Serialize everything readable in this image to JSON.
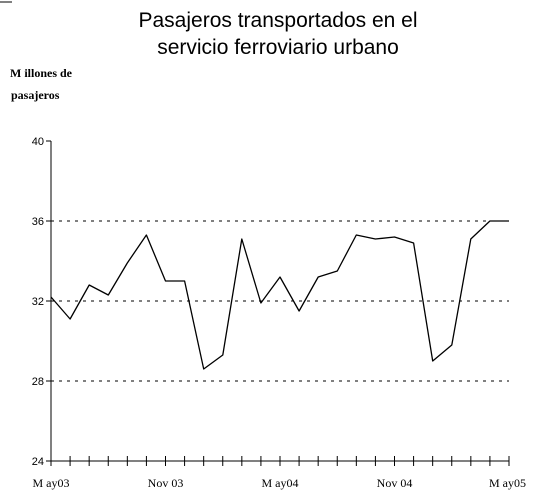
{
  "chart_data": {
    "type": "line",
    "title_lines": [
      "Pasajeros transportados en el",
      "servicio ferroviario urbano"
    ],
    "ylabel_lines": [
      "M illones de",
      "pasajeros"
    ],
    "xlabel": "",
    "ylim": [
      24,
      40
    ],
    "y_ticks": [
      24,
      28,
      32,
      36,
      40
    ],
    "y_tick_labels": [
      "24",
      "28",
      "32",
      "36",
      "40"
    ],
    "grid": "dashed horizontal at 28, 32, 36",
    "x_tick_labels": [
      "M ay03",
      "Nov 03",
      "M ay04",
      "Nov 04",
      "M ay05"
    ],
    "x_tick_label_months": [
      "2003-05",
      "2003-11",
      "2004-05",
      "2004-11",
      "2005-05"
    ],
    "x": [
      "2003-05",
      "2003-06",
      "2003-07",
      "2003-08",
      "2003-09",
      "2003-10",
      "2003-11",
      "2003-12",
      "2004-01",
      "2004-02",
      "2004-03",
      "2004-04",
      "2004-05",
      "2004-06",
      "2004-07",
      "2004-08",
      "2004-09",
      "2004-10",
      "2004-11",
      "2004-12",
      "2005-01",
      "2005-02",
      "2005-03",
      "2005-04",
      "2005-05"
    ],
    "series": [
      {
        "values": [
          32.2,
          31.1,
          32.8,
          32.3,
          33.9,
          35.3,
          33.0,
          33.0,
          28.6,
          29.3,
          35.1,
          31.9,
          33.2,
          31.5,
          33.2,
          33.5,
          35.3,
          35.1,
          35.2,
          34.9,
          29.0,
          29.8,
          35.1,
          36.0,
          36.0
        ]
      }
    ],
    "colors": {
      "line": "#000000",
      "axis": "#000000",
      "grid": "#000000"
    }
  }
}
